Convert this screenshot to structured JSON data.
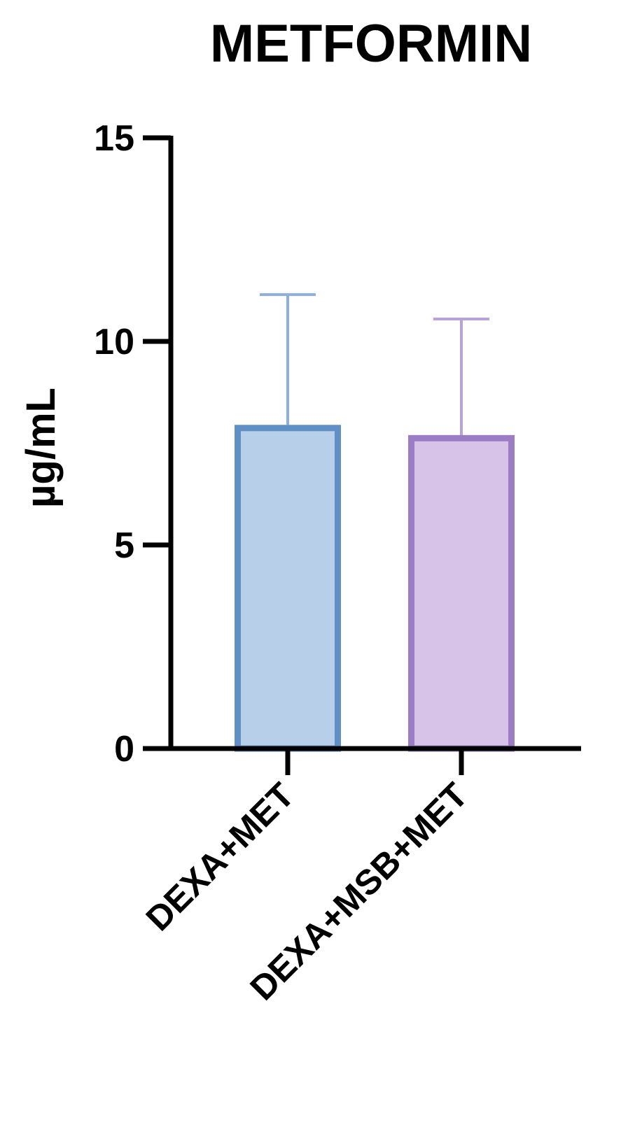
{
  "chart_data": {
    "type": "bar",
    "title": "METFORMIN",
    "xlabel": "",
    "ylabel": "µg/mL",
    "categories": [
      "DEXA+MET",
      "DEXA+MSB+MET"
    ],
    "values": [
      7.95,
      7.7
    ],
    "error_upper": [
      11.15,
      10.55
    ],
    "ylim": [
      0,
      15
    ],
    "yticks": [
      0,
      5,
      10,
      15
    ],
    "grid": false,
    "legend": "none",
    "colors": {
      "fill": [
        "#b8cfea",
        "#d6c3e7"
      ],
      "stroke": [
        "#5f8fc4",
        "#9d7cc6"
      ],
      "error": [
        "#8eaedb",
        "#b8a2db"
      ],
      "axis": "#000000"
    }
  }
}
